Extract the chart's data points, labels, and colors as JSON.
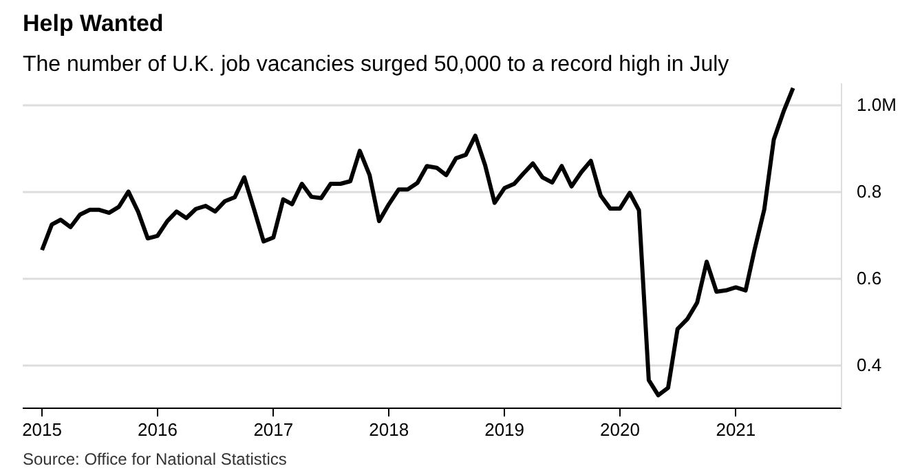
{
  "chart_data": {
    "type": "line",
    "title": "Help Wanted",
    "subtitle": "The number of U.K. job vacancies surged 50,000 to a record high in July",
    "annotations": [
      "Source: Office for National Statistics"
    ],
    "x": [
      "2015-01",
      "2015-02",
      "2015-03",
      "2015-04",
      "2015-05",
      "2015-06",
      "2015-07",
      "2015-08",
      "2015-09",
      "2015-10",
      "2015-11",
      "2015-12",
      "2016-01",
      "2016-02",
      "2016-03",
      "2016-04",
      "2016-05",
      "2016-06",
      "2016-07",
      "2016-08",
      "2016-09",
      "2016-10",
      "2016-11",
      "2016-12",
      "2017-01",
      "2017-02",
      "2017-03",
      "2017-04",
      "2017-05",
      "2017-06",
      "2017-07",
      "2017-08",
      "2017-09",
      "2017-10",
      "2017-11",
      "2017-12",
      "2018-01",
      "2018-02",
      "2018-03",
      "2018-04",
      "2018-05",
      "2018-06",
      "2018-07",
      "2018-08",
      "2018-09",
      "2018-10",
      "2018-11",
      "2018-12",
      "2019-01",
      "2019-02",
      "2019-03",
      "2019-04",
      "2019-05",
      "2019-06",
      "2019-07",
      "2019-08",
      "2019-09",
      "2019-10",
      "2019-11",
      "2019-12",
      "2020-01",
      "2020-02",
      "2020-03",
      "2020-04",
      "2020-05",
      "2020-06",
      "2020-07",
      "2020-08",
      "2020-09",
      "2020-10",
      "2020-11",
      "2020-12",
      "2021-01",
      "2021-02",
      "2021-03",
      "2021-04",
      "2021-05",
      "2021-06",
      "2021-07"
    ],
    "series": [
      {
        "color": "#000000",
        "values": [
          0.665,
          0.724,
          0.735,
          0.718,
          0.747,
          0.758,
          0.758,
          0.751,
          0.765,
          0.8,
          0.753,
          0.692,
          0.698,
          0.732,
          0.754,
          0.739,
          0.76,
          0.767,
          0.754,
          0.778,
          0.787,
          0.833,
          0.759,
          0.685,
          0.694,
          0.782,
          0.771,
          0.818,
          0.788,
          0.785,
          0.818,
          0.818,
          0.824,
          0.894,
          0.838,
          0.732,
          0.771,
          0.805,
          0.805,
          0.82,
          0.859,
          0.855,
          0.838,
          0.877,
          0.885,
          0.929,
          0.861,
          0.774,
          0.808,
          0.818,
          0.841,
          0.865,
          0.833,
          0.821,
          0.859,
          0.812,
          0.845,
          0.871,
          0.791,
          0.761,
          0.761,
          0.797,
          0.757,
          0.365,
          0.33,
          0.347,
          0.483,
          0.506,
          0.544,
          0.638,
          0.569,
          0.572,
          0.579,
          0.572,
          0.665,
          0.759,
          0.92,
          0.985,
          1.039
        ]
      }
    ],
    "xlim": [
      "2014-11",
      "2021-12"
    ],
    "xticks": [
      "2015",
      "2016",
      "2017",
      "2018",
      "2019",
      "2020",
      "2021"
    ],
    "ylim": [
      0.3,
      1.05
    ],
    "yticks": [
      0.4,
      0.6,
      0.8,
      {
        "value": 1.0,
        "label": "1.0M"
      }
    ],
    "grid": "y",
    "marker": "none",
    "line_style": "solid"
  }
}
